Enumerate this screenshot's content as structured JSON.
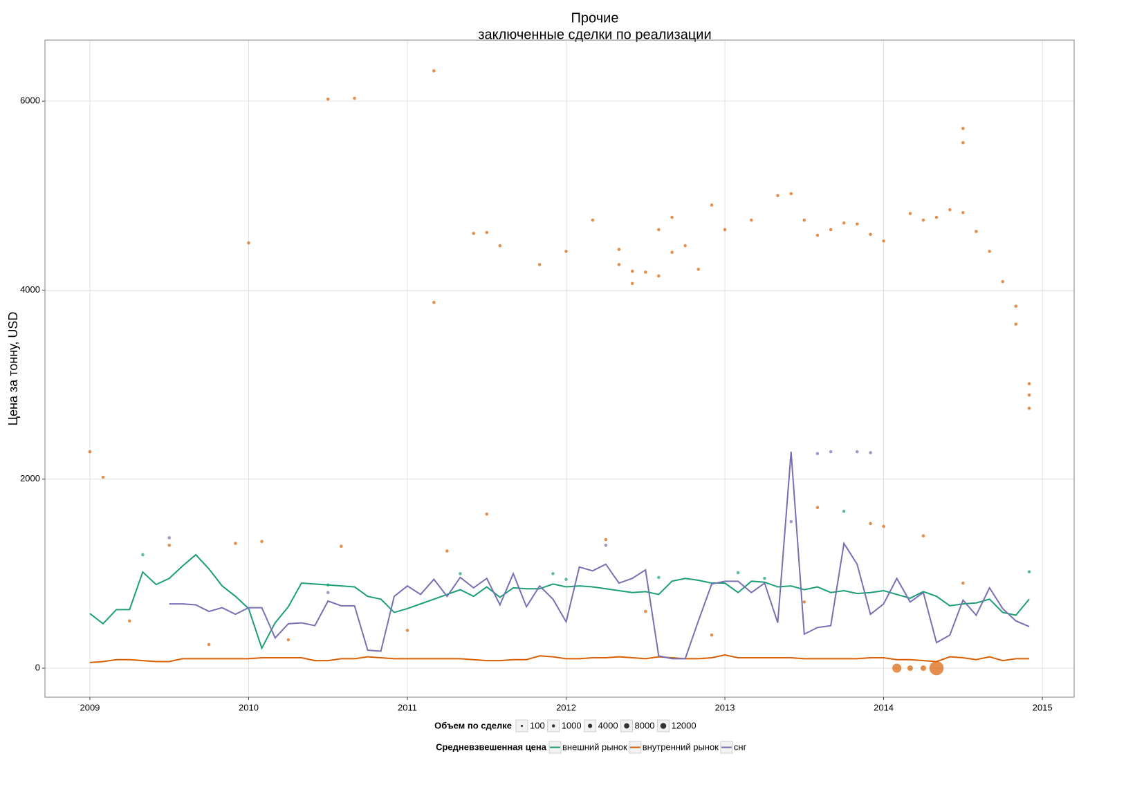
{
  "chart_data": {
    "type": "line",
    "title": "Прочие",
    "subtitle": "заключенные сделки по реализации",
    "y_label": "Цена за тонну, USD",
    "xlim": [
      2008.717,
      2015.2
    ],
    "xticks": [
      2009,
      2010,
      2011,
      2012,
      2013,
      2014,
      2015
    ],
    "ylim": [
      -307,
      6645
    ],
    "yticks": [
      0,
      2000,
      4000,
      6000
    ],
    "grid": true,
    "x": [
      2009,
      2009.083,
      2009.167,
      2009.25,
      2009.333,
      2009.417,
      2009.5,
      2009.583,
      2009.667,
      2009.75,
      2009.833,
      2009.917,
      2010,
      2010.083,
      2010.167,
      2010.25,
      2010.333,
      2010.417,
      2010.5,
      2010.583,
      2010.667,
      2010.75,
      2010.833,
      2010.917,
      2011,
      2011.083,
      2011.167,
      2011.25,
      2011.333,
      2011.417,
      2011.5,
      2011.583,
      2011.667,
      2011.75,
      2011.833,
      2011.917,
      2012,
      2012.083,
      2012.167,
      2012.25,
      2012.333,
      2012.417,
      2012.5,
      2012.583,
      2012.667,
      2012.75,
      2012.833,
      2012.917,
      2013,
      2013.083,
      2013.167,
      2013.25,
      2013.333,
      2013.417,
      2013.5,
      2013.583,
      2013.667,
      2013.75,
      2013.833,
      2013.917,
      2014,
      2014.083,
      2014.167,
      2014.25,
      2014.333,
      2014.417,
      2014.5,
      2014.583,
      2014.667,
      2014.75,
      2014.833,
      2014.917
    ],
    "color_legend_title": "Средневзвешенная цена",
    "size_legend_title": "Объем по сделке",
    "size_legend": [
      100,
      1000,
      4000,
      8000,
      12000
    ],
    "series": [
      {
        "name": "внешний рынок",
        "color": "#1b9e77",
        "values": [
          578,
          470,
          620,
          620,
          1017,
          885,
          950,
          1080,
          1200,
          1050,
          870,
          760,
          630,
          212,
          480,
          650,
          900,
          890,
          880,
          870,
          860,
          760,
          730,
          590,
          630,
          680,
          730,
          780,
          830,
          760,
          860,
          750,
          850,
          840,
          840,
          890,
          860,
          870,
          860,
          840,
          820,
          800,
          810,
          780,
          920,
          950,
          930,
          900,
          900,
          800,
          920,
          910,
          860,
          870,
          830,
          860,
          800,
          820,
          790,
          800,
          820,
          780,
          740,
          810,
          760,
          660,
          680,
          690,
          730,
          590,
          560,
          730
        ],
        "points": {
          "x": [
            2009.333,
            2010.5,
            2011.917,
            2012.583,
            2013.25,
            2013.75,
            2014.917,
            2012,
            2011.333,
            2013.083
          ],
          "y": [
            1200,
            880,
            1000,
            960,
            950,
            1660,
            1020,
            940,
            1000,
            1010
          ],
          "size": [
            100,
            100,
            100,
            100,
            100,
            100,
            100,
            100,
            100,
            100
          ]
        }
      },
      {
        "name": "внутренний рынок",
        "color": "#d95f02",
        "values": [
          60,
          70,
          90,
          90,
          80,
          70,
          70,
          100,
          100,
          100,
          100,
          100,
          100,
          110,
          110,
          110,
          110,
          80,
          80,
          100,
          100,
          120,
          110,
          100,
          100,
          100,
          100,
          100,
          100,
          90,
          80,
          80,
          90,
          90,
          130,
          120,
          100,
          100,
          110,
          110,
          120,
          110,
          100,
          120,
          110,
          100,
          100,
          110,
          140,
          110,
          110,
          110,
          110,
          110,
          100,
          100,
          100,
          100,
          100,
          110,
          110,
          90,
          90,
          80,
          70,
          120,
          110,
          90,
          120,
          80,
          100,
          100
        ],
        "points": {
          "x": [
            2009,
            2009.083,
            2010,
            2010.5,
            2010.667,
            2011.167,
            2011.167,
            2011.417,
            2011.5,
            2011.583,
            2011.833,
            2012,
            2012.167,
            2012.333,
            2012.333,
            2012.417,
            2012.417,
            2012.5,
            2012.583,
            2012.583,
            2012.667,
            2012.667,
            2012.75,
            2012.833,
            2012.917,
            2013,
            2013.167,
            2013.333,
            2013.417,
            2013.5,
            2013.583,
            2013.667,
            2013.75,
            2013.833,
            2013.917,
            2014,
            2014.167,
            2014.25,
            2014.333,
            2014.417,
            2014.5,
            2014.5,
            2014.5,
            2014.583,
            2014.667,
            2014.75,
            2014.833,
            2014.833,
            2014.917,
            2014.917,
            2014.917,
            2011.5,
            2013.583,
            2013.917,
            2014,
            2009.5,
            2009.917,
            2010.083,
            2010.583,
            2011.25,
            2012.25,
            2014.25,
            2014.083,
            2014.167,
            2014.25,
            2014.333,
            2009.25,
            2010.25,
            2011,
            2012.5,
            2013.5,
            2014.5,
            2009.75,
            2012.917
          ],
          "y": [
            2290,
            2020,
            4500,
            6020,
            6030,
            6320,
            3870,
            4600,
            4610,
            4470,
            4270,
            4410,
            4740,
            4430,
            4270,
            4200,
            4070,
            4190,
            4640,
            4150,
            4770,
            4400,
            4470,
            4220,
            4900,
            4640,
            4740,
            5000,
            5020,
            4740,
            4580,
            4640,
            4710,
            4700,
            4590,
            4520,
            4810,
            4740,
            4770,
            4850,
            5710,
            5560,
            4820,
            4620,
            4410,
            4090,
            3830,
            3640,
            3010,
            2890,
            2750,
            1630,
            1700,
            1530,
            1500,
            1300,
            1320,
            1340,
            1290,
            1240,
            1360,
            1400,
            0,
            0,
            0,
            0,
            500,
            300,
            400,
            600,
            700,
            900,
            250,
            350
          ],
          "size": [
            100,
            100,
            100,
            100,
            100,
            100,
            100,
            100,
            100,
            100,
            100,
            100,
            100,
            100,
            100,
            100,
            100,
            100,
            100,
            100,
            100,
            100,
            100,
            100,
            100,
            100,
            100,
            100,
            100,
            100,
            100,
            100,
            100,
            100,
            100,
            100,
            100,
            100,
            100,
            100,
            100,
            100,
            100,
            100,
            100,
            100,
            100,
            100,
            100,
            100,
            100,
            100,
            100,
            100,
            100,
            100,
            100,
            100,
            100,
            100,
            100,
            100,
            4000,
            1000,
            1000,
            12000,
            100,
            100,
            100,
            100,
            100,
            100,
            100,
            100
          ]
        }
      },
      {
        "name": "снг",
        "color": "#7570b3",
        "values": [
          null,
          null,
          null,
          null,
          null,
          null,
          680,
          680,
          670,
          600,
          640,
          570,
          640,
          640,
          320,
          470,
          480,
          450,
          710,
          660,
          660,
          190,
          180,
          760,
          870,
          780,
          940,
          760,
          960,
          850,
          950,
          670,
          1000,
          650,
          870,
          730,
          490,
          1070,
          1030,
          1100,
          900,
          950,
          1040,
          130,
          100,
          100,
          500,
          890,
          920,
          920,
          800,
          900,
          480,
          2290,
          360,
          430,
          450,
          1320,
          1100,
          570,
          680,
          950,
          700,
          800,
          270,
          350,
          720,
          560,
          850,
          630,
          500,
          440
        ],
        "points": {
          "x": [
            2013.583,
            2013.667,
            2013.833,
            2013.917,
            2013.417,
            2009.5,
            2012.25,
            2010.5
          ],
          "y": [
            2270,
            2290,
            2290,
            2280,
            1550,
            1380,
            1300,
            800
          ],
          "size": [
            100,
            100,
            100,
            100,
            100,
            100,
            100,
            100
          ]
        }
      }
    ]
  }
}
